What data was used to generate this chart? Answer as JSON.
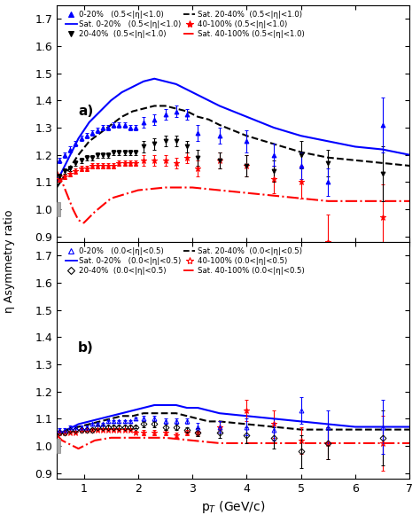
{
  "panel_a": {
    "label": "a)",
    "ylim": [
      0.88,
      1.75
    ],
    "yticks": [
      0.9,
      1.0,
      1.1,
      1.2,
      1.3,
      1.4,
      1.5,
      1.6,
      1.7
    ],
    "data_020": {
      "x": [
        0.55,
        0.65,
        0.75,
        0.85,
        0.95,
        1.05,
        1.15,
        1.25,
        1.35,
        1.45,
        1.55,
        1.65,
        1.75,
        1.85,
        1.95,
        2.1,
        2.3,
        2.5,
        2.7,
        2.9,
        3.1,
        3.5,
        4.0,
        4.5,
        5.0,
        5.5,
        6.5
      ],
      "y": [
        1.18,
        1.2,
        1.22,
        1.24,
        1.26,
        1.27,
        1.28,
        1.29,
        1.3,
        1.3,
        1.31,
        1.31,
        1.31,
        1.3,
        1.3,
        1.32,
        1.33,
        1.35,
        1.36,
        1.35,
        1.28,
        1.27,
        1.25,
        1.2,
        1.16,
        1.1,
        1.31
      ],
      "yerr": [
        0.01,
        0.01,
        0.01,
        0.01,
        0.01,
        0.01,
        0.01,
        0.01,
        0.01,
        0.01,
        0.01,
        0.01,
        0.01,
        0.01,
        0.01,
        0.02,
        0.02,
        0.02,
        0.02,
        0.02,
        0.03,
        0.03,
        0.04,
        0.04,
        0.05,
        0.05,
        0.1
      ],
      "color": "blue",
      "marker": "^",
      "filled": true
    },
    "data_2040": {
      "x": [
        0.55,
        0.65,
        0.75,
        0.85,
        0.95,
        1.05,
        1.15,
        1.25,
        1.35,
        1.45,
        1.55,
        1.65,
        1.75,
        1.85,
        1.95,
        2.1,
        2.3,
        2.5,
        2.7,
        2.9,
        3.1,
        3.5,
        4.0,
        4.5,
        5.0,
        5.5,
        6.5
      ],
      "y": [
        1.12,
        1.14,
        1.15,
        1.17,
        1.18,
        1.19,
        1.19,
        1.2,
        1.2,
        1.2,
        1.21,
        1.21,
        1.21,
        1.21,
        1.21,
        1.23,
        1.24,
        1.25,
        1.25,
        1.23,
        1.19,
        1.18,
        1.16,
        1.14,
        1.2,
        1.17,
        1.13
      ],
      "yerr": [
        0.01,
        0.01,
        0.01,
        0.01,
        0.01,
        0.01,
        0.01,
        0.01,
        0.01,
        0.01,
        0.01,
        0.01,
        0.01,
        0.01,
        0.01,
        0.02,
        0.02,
        0.02,
        0.02,
        0.02,
        0.03,
        0.03,
        0.04,
        0.04,
        0.05,
        0.05,
        0.1
      ],
      "color": "black",
      "marker": "v",
      "filled": true
    },
    "data_40100": {
      "x": [
        0.55,
        0.65,
        0.75,
        0.85,
        0.95,
        1.05,
        1.15,
        1.25,
        1.35,
        1.45,
        1.55,
        1.65,
        1.75,
        1.85,
        1.95,
        2.1,
        2.3,
        2.5,
        2.7,
        2.9,
        3.1,
        3.5,
        4.0,
        4.5,
        5.0,
        5.5,
        6.5
      ],
      "y": [
        1.11,
        1.12,
        1.13,
        1.14,
        1.15,
        1.15,
        1.16,
        1.16,
        1.16,
        1.16,
        1.16,
        1.17,
        1.17,
        1.17,
        1.17,
        1.18,
        1.18,
        1.18,
        1.17,
        1.19,
        1.15,
        1.18,
        1.16,
        1.11,
        1.1,
        0.88,
        0.97
      ],
      "yerr": [
        0.01,
        0.01,
        0.01,
        0.01,
        0.01,
        0.01,
        0.01,
        0.01,
        0.01,
        0.01,
        0.01,
        0.01,
        0.01,
        0.01,
        0.01,
        0.02,
        0.02,
        0.02,
        0.02,
        0.02,
        0.03,
        0.03,
        0.04,
        0.05,
        0.06,
        0.1,
        0.12
      ],
      "color": "red",
      "marker": "*",
      "filled": true
    },
    "sat_020": {
      "x": [
        0.5,
        0.7,
        0.9,
        1.1,
        1.3,
        1.5,
        1.7,
        1.9,
        2.1,
        2.3,
        2.5,
        2.7,
        2.9,
        3.1,
        3.3,
        3.5,
        4.0,
        4.5,
        5.0,
        5.5,
        6.0,
        6.5,
        7.0
      ],
      "y": [
        1.1,
        1.18,
        1.26,
        1.32,
        1.36,
        1.4,
        1.43,
        1.45,
        1.47,
        1.48,
        1.47,
        1.46,
        1.44,
        1.42,
        1.4,
        1.38,
        1.34,
        1.3,
        1.27,
        1.25,
        1.23,
        1.22,
        1.2
      ],
      "color": "blue",
      "linestyle": "-"
    },
    "sat_2040": {
      "x": [
        0.5,
        0.7,
        0.9,
        1.1,
        1.3,
        1.5,
        1.7,
        1.9,
        2.1,
        2.3,
        2.5,
        2.7,
        2.9,
        3.1,
        3.3,
        3.5,
        4.0,
        4.5,
        5.0,
        5.5,
        6.0,
        6.5,
        7.0
      ],
      "y": [
        1.08,
        1.14,
        1.2,
        1.25,
        1.28,
        1.31,
        1.34,
        1.36,
        1.37,
        1.38,
        1.38,
        1.37,
        1.36,
        1.34,
        1.33,
        1.31,
        1.27,
        1.24,
        1.21,
        1.19,
        1.18,
        1.17,
        1.16
      ],
      "color": "black",
      "linestyle": "--"
    },
    "sat_40100": {
      "x": [
        0.5,
        0.6,
        0.7,
        0.8,
        0.9,
        1.0,
        1.1,
        1.2,
        1.5,
        2.0,
        2.5,
        3.0,
        3.5,
        4.0,
        4.5,
        5.0,
        5.5,
        6.0,
        6.5,
        7.0
      ],
      "y": [
        1.14,
        1.1,
        1.05,
        1.0,
        0.96,
        0.95,
        0.97,
        0.99,
        1.04,
        1.07,
        1.08,
        1.08,
        1.07,
        1.06,
        1.05,
        1.04,
        1.03,
        1.03,
        1.03,
        1.03
      ],
      "color": "red",
      "linestyle": "-."
    },
    "legend_data": [
      {
        "label": "0-20%   (0.5<|η|<1.0)",
        "color": "blue",
        "marker": "^",
        "filled": true
      },
      {
        "label": "20-40%  (0.5<|η|<1.0)",
        "color": "black",
        "marker": "v",
        "filled": true
      },
      {
        "label": "40-100% (0.5<|η|<1.0)",
        "color": "red",
        "marker": "*",
        "filled": true
      }
    ],
    "legend_sat": [
      {
        "label": "Sat. 0-20%   (0.5<|η|<1.0)",
        "color": "blue",
        "linestyle": "-"
      },
      {
        "label": "Sat. 20-40%  (0.5<|η|<1.0)",
        "color": "black",
        "linestyle": "--"
      },
      {
        "label": "Sat. 40-100% (0.5<|η|<1.0)",
        "color": "red",
        "linestyle": "-."
      }
    ]
  },
  "panel_b": {
    "label": "b)",
    "ylim": [
      0.88,
      1.75
    ],
    "yticks": [
      0.9,
      1.0,
      1.1,
      1.2,
      1.3,
      1.4,
      1.5,
      1.6,
      1.7
    ],
    "data_020": {
      "x": [
        0.55,
        0.65,
        0.75,
        0.85,
        0.95,
        1.05,
        1.15,
        1.25,
        1.35,
        1.45,
        1.55,
        1.65,
        1.75,
        1.85,
        1.95,
        2.1,
        2.3,
        2.5,
        2.7,
        2.9,
        3.1,
        3.5,
        4.0,
        4.5,
        5.0,
        5.5,
        6.5
      ],
      "y": [
        1.06,
        1.06,
        1.07,
        1.07,
        1.07,
        1.07,
        1.08,
        1.08,
        1.08,
        1.09,
        1.09,
        1.09,
        1.09,
        1.09,
        1.1,
        1.1,
        1.1,
        1.09,
        1.09,
        1.09,
        1.07,
        1.07,
        1.07,
        1.06,
        1.13,
        1.07,
        1.07
      ],
      "yerr": [
        0.005,
        0.005,
        0.005,
        0.005,
        0.005,
        0.005,
        0.005,
        0.005,
        0.005,
        0.005,
        0.005,
        0.005,
        0.005,
        0.005,
        0.005,
        0.01,
        0.01,
        0.01,
        0.01,
        0.01,
        0.015,
        0.02,
        0.03,
        0.04,
        0.05,
        0.06,
        0.1
      ],
      "color": "blue",
      "marker": "^",
      "filled": false
    },
    "data_2040": {
      "x": [
        0.55,
        0.65,
        0.75,
        0.85,
        0.95,
        1.05,
        1.15,
        1.25,
        1.35,
        1.45,
        1.55,
        1.65,
        1.75,
        1.85,
        1.95,
        2.1,
        2.3,
        2.5,
        2.7,
        2.9,
        3.1,
        3.5,
        4.0,
        4.5,
        5.0,
        5.5,
        6.5
      ],
      "y": [
        1.05,
        1.05,
        1.06,
        1.06,
        1.06,
        1.06,
        1.06,
        1.07,
        1.07,
        1.07,
        1.07,
        1.07,
        1.07,
        1.07,
        1.07,
        1.08,
        1.08,
        1.07,
        1.07,
        1.06,
        1.05,
        1.05,
        1.04,
        1.03,
        0.98,
        1.01,
        1.03
      ],
      "yerr": [
        0.005,
        0.005,
        0.005,
        0.005,
        0.005,
        0.005,
        0.005,
        0.005,
        0.005,
        0.005,
        0.005,
        0.005,
        0.005,
        0.005,
        0.005,
        0.01,
        0.01,
        0.01,
        0.01,
        0.01,
        0.015,
        0.02,
        0.03,
        0.04,
        0.06,
        0.06,
        0.1
      ],
      "color": "black",
      "marker": "D",
      "filled": false
    },
    "data_40100": {
      "x": [
        0.55,
        0.65,
        0.75,
        0.85,
        0.95,
        1.05,
        1.15,
        1.25,
        1.35,
        1.45,
        1.55,
        1.65,
        1.75,
        1.85,
        1.95,
        2.1,
        2.3,
        2.5,
        2.7,
        2.9,
        3.1,
        3.5,
        4.0,
        4.5,
        5.0,
        5.5,
        6.5
      ],
      "y": [
        1.05,
        1.05,
        1.05,
        1.05,
        1.06,
        1.06,
        1.06,
        1.06,
        1.06,
        1.06,
        1.06,
        1.06,
        1.06,
        1.06,
        1.05,
        1.05,
        1.05,
        1.05,
        1.04,
        1.05,
        1.05,
        1.07,
        1.13,
        1.08,
        1.02,
        1.01,
        1.01
      ],
      "yerr": [
        0.005,
        0.005,
        0.005,
        0.005,
        0.005,
        0.005,
        0.005,
        0.005,
        0.005,
        0.005,
        0.005,
        0.005,
        0.005,
        0.005,
        0.005,
        0.01,
        0.01,
        0.01,
        0.01,
        0.01,
        0.015,
        0.02,
        0.04,
        0.05,
        0.05,
        0.06,
        0.1
      ],
      "color": "red",
      "marker": "*",
      "filled": false
    },
    "sat_020": {
      "x": [
        0.5,
        0.7,
        0.9,
        1.1,
        1.3,
        1.5,
        1.7,
        1.9,
        2.1,
        2.3,
        2.5,
        2.7,
        2.9,
        3.1,
        3.3,
        3.5,
        4.0,
        4.5,
        5.0,
        5.5,
        6.0,
        6.5,
        7.0
      ],
      "y": [
        1.04,
        1.06,
        1.08,
        1.09,
        1.1,
        1.11,
        1.12,
        1.13,
        1.14,
        1.15,
        1.15,
        1.15,
        1.14,
        1.14,
        1.13,
        1.12,
        1.11,
        1.1,
        1.09,
        1.08,
        1.07,
        1.07,
        1.07
      ],
      "color": "blue",
      "linestyle": "-"
    },
    "sat_2040": {
      "x": [
        0.5,
        0.7,
        0.9,
        1.1,
        1.3,
        1.5,
        1.7,
        1.9,
        2.1,
        2.3,
        2.5,
        2.7,
        2.9,
        3.1,
        3.3,
        3.5,
        4.0,
        4.5,
        5.0,
        5.5,
        6.0,
        6.5,
        7.0
      ],
      "y": [
        1.04,
        1.06,
        1.07,
        1.08,
        1.09,
        1.1,
        1.11,
        1.11,
        1.12,
        1.12,
        1.12,
        1.12,
        1.11,
        1.1,
        1.09,
        1.09,
        1.08,
        1.07,
        1.06,
        1.06,
        1.06,
        1.06,
        1.06
      ],
      "color": "black",
      "linestyle": "--"
    },
    "sat_40100": {
      "x": [
        0.5,
        0.6,
        0.7,
        0.8,
        0.9,
        1.0,
        1.1,
        1.2,
        1.5,
        2.0,
        2.5,
        3.0,
        3.5,
        4.0,
        4.5,
        5.0,
        5.5,
        6.0,
        6.5,
        7.0
      ],
      "y": [
        1.04,
        1.02,
        1.01,
        1.0,
        0.99,
        1.0,
        1.01,
        1.02,
        1.03,
        1.03,
        1.03,
        1.02,
        1.01,
        1.01,
        1.01,
        1.01,
        1.01,
        1.01,
        1.01,
        1.01
      ],
      "color": "red",
      "linestyle": "-."
    },
    "legend_data": [
      {
        "label": "0-20%   (0.0<|η|<0.5)",
        "color": "blue",
        "marker": "^",
        "filled": false
      },
      {
        "label": "20-40%  (0.0<|η|<0.5)",
        "color": "black",
        "marker": "D",
        "filled": false
      },
      {
        "label": "40-100% (0.0<|η|<0.5)",
        "color": "red",
        "marker": "*",
        "filled": false
      }
    ],
    "legend_sat": [
      {
        "label": "Sat. 0-20%   (0.0<|η|<0.5)",
        "color": "blue",
        "linestyle": "-"
      },
      {
        "label": "Sat. 20-40%  (0.0<|η|<0.5)",
        "color": "black",
        "linestyle": "--"
      },
      {
        "label": "Sat. 40-100% (0.0<|η|<0.5)",
        "color": "red",
        "linestyle": "-."
      }
    ]
  },
  "xlabel": "p$_T$ (GeV/c)",
  "ylabel": "η Asymmetry ratio",
  "xlim": [
    0.5,
    7.0
  ]
}
